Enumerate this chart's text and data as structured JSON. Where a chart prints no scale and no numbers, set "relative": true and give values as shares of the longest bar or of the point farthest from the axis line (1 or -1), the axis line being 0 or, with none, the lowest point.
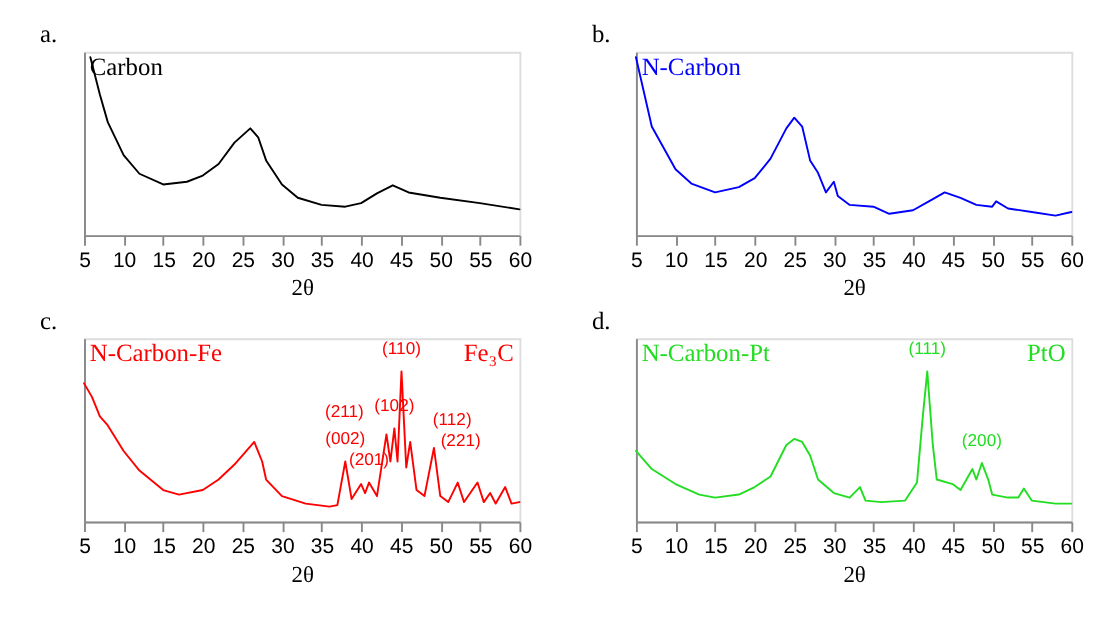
{
  "chart_data": [
    {
      "type": "line",
      "title": "a.",
      "relative": true,
      "xlabel": "2θ",
      "xlim": [
        5,
        60
      ],
      "xticks": [
        5,
        10,
        15,
        20,
        25,
        30,
        35,
        40,
        45,
        50,
        55,
        60
      ],
      "grid": false,
      "series": [
        {
          "name": "Carbon",
          "color": "#000000",
          "x": [
            5.8,
            7,
            8,
            10,
            12,
            15,
            18,
            20,
            22,
            24,
            26,
            27,
            28,
            30,
            32,
            35,
            38,
            40,
            42,
            44,
            46,
            50,
            55,
            60
          ],
          "values": [
            1.0,
            0.79,
            0.635,
            0.45,
            0.345,
            0.285,
            0.3,
            0.335,
            0.4,
            0.52,
            0.6,
            0.55,
            0.42,
            0.285,
            0.21,
            0.17,
            0.16,
            0.18,
            0.235,
            0.28,
            0.24,
            0.21,
            0.18,
            0.145
          ]
        }
      ]
    },
    {
      "type": "line",
      "title": "b.",
      "relative": true,
      "xlabel": "2θ",
      "xlim": [
        5,
        60
      ],
      "xticks": [
        5,
        10,
        15,
        20,
        25,
        30,
        35,
        40,
        45,
        50,
        55,
        60
      ],
      "grid": false,
      "series": [
        {
          "name": "N-Carbon",
          "color": "#0000ff",
          "x": [
            5,
            7,
            9,
            10,
            12,
            15,
            18,
            20,
            22,
            24,
            25,
            26,
            27,
            28,
            29,
            30,
            30.5,
            32,
            35,
            37,
            40,
            42,
            44,
            46,
            48,
            50,
            50.5,
            52,
            55,
            58,
            60
          ],
          "values": [
            1.0,
            0.61,
            0.45,
            0.37,
            0.29,
            0.24,
            0.27,
            0.32,
            0.43,
            0.6,
            0.66,
            0.61,
            0.42,
            0.35,
            0.24,
            0.3,
            0.22,
            0.17,
            0.16,
            0.12,
            0.14,
            0.19,
            0.24,
            0.21,
            0.17,
            0.16,
            0.19,
            0.15,
            0.13,
            0.11,
            0.13
          ]
        }
      ]
    },
    {
      "type": "line",
      "title": "c.",
      "relative": true,
      "xlabel": "2θ",
      "xlim": [
        5,
        60
      ],
      "xticks": [
        5,
        10,
        15,
        20,
        25,
        30,
        35,
        40,
        45,
        50,
        55,
        60
      ],
      "grid": false,
      "series": [
        {
          "name": "N-Carbon-Fe",
          "color": "#ff0000",
          "x": [
            5,
            6,
            7,
            8,
            10,
            12,
            15,
            17,
            20,
            22,
            24,
            26.5,
            27.5,
            28,
            30,
            33,
            36,
            37,
            38,
            38.8,
            40,
            40.5,
            41,
            42,
            43.2,
            43.7,
            44.2,
            44.6,
            45.1,
            45.7,
            46.2,
            47,
            48,
            49.2,
            50,
            51,
            52.2,
            53,
            54.7,
            55.5,
            56.3,
            57,
            58.2,
            59,
            60
          ],
          "values": [
            0.92,
            0.83,
            0.7,
            0.64,
            0.47,
            0.34,
            0.21,
            0.18,
            0.21,
            0.28,
            0.38,
            0.53,
            0.4,
            0.28,
            0.17,
            0.12,
            0.1,
            0.11,
            0.4,
            0.15,
            0.25,
            0.19,
            0.26,
            0.17,
            0.58,
            0.4,
            0.62,
            0.4,
            1.0,
            0.36,
            0.53,
            0.21,
            0.17,
            0.49,
            0.17,
            0.13,
            0.26,
            0.13,
            0.26,
            0.13,
            0.19,
            0.12,
            0.23,
            0.12,
            0.13
          ]
        }
      ],
      "annotations": [
        "Fe₃C",
        {
          "text": "(002)",
          "x": 38,
          "y": 0.4
        },
        {
          "text": "(201)",
          "x": 41,
          "y": 0.26
        },
        {
          "text": "(211)",
          "x": 43.2,
          "y": 0.58
        },
        {
          "text": "(102)",
          "x": 44.2,
          "y": 0.62
        },
        {
          "text": "(110)",
          "x": 45.1,
          "y": 1.0
        },
        {
          "text": "(112)",
          "x": 46.2,
          "y": 0.53
        },
        {
          "text": "(221)",
          "x": 49.2,
          "y": 0.49
        }
      ]
    },
    {
      "type": "line",
      "title": "d.",
      "relative": true,
      "xlabel": "2θ",
      "xlim": [
        5,
        60
      ],
      "xticks": [
        5,
        10,
        15,
        20,
        25,
        30,
        35,
        40,
        45,
        50,
        55,
        60
      ],
      "grid": false,
      "series": [
        {
          "name": "N-Carbon-Pt",
          "color": "#22dd22",
          "x": [
            5,
            7,
            10,
            13,
            15,
            18,
            20,
            22,
            24,
            25,
            26,
            27,
            28,
            30,
            32,
            33.3,
            34,
            36,
            39,
            40.5,
            41.2,
            41.8,
            42.5,
            43,
            45,
            46,
            47.5,
            48,
            48.7,
            49.5,
            50,
            52,
            53.3,
            54,
            55,
            58,
            60
          ],
          "values": [
            0.47,
            0.35,
            0.25,
            0.18,
            0.16,
            0.18,
            0.23,
            0.3,
            0.51,
            0.55,
            0.53,
            0.44,
            0.28,
            0.19,
            0.16,
            0.23,
            0.14,
            0.13,
            0.14,
            0.26,
            0.68,
            1.0,
            0.51,
            0.28,
            0.25,
            0.21,
            0.35,
            0.28,
            0.39,
            0.28,
            0.18,
            0.16,
            0.16,
            0.22,
            0.14,
            0.12,
            0.12
          ]
        }
      ],
      "annotations": [
        "PtO",
        {
          "text": "(111)",
          "x": 41.8,
          "y": 1.0
        },
        {
          "text": "(200)",
          "x": 48.7,
          "y": 0.39
        }
      ]
    }
  ]
}
